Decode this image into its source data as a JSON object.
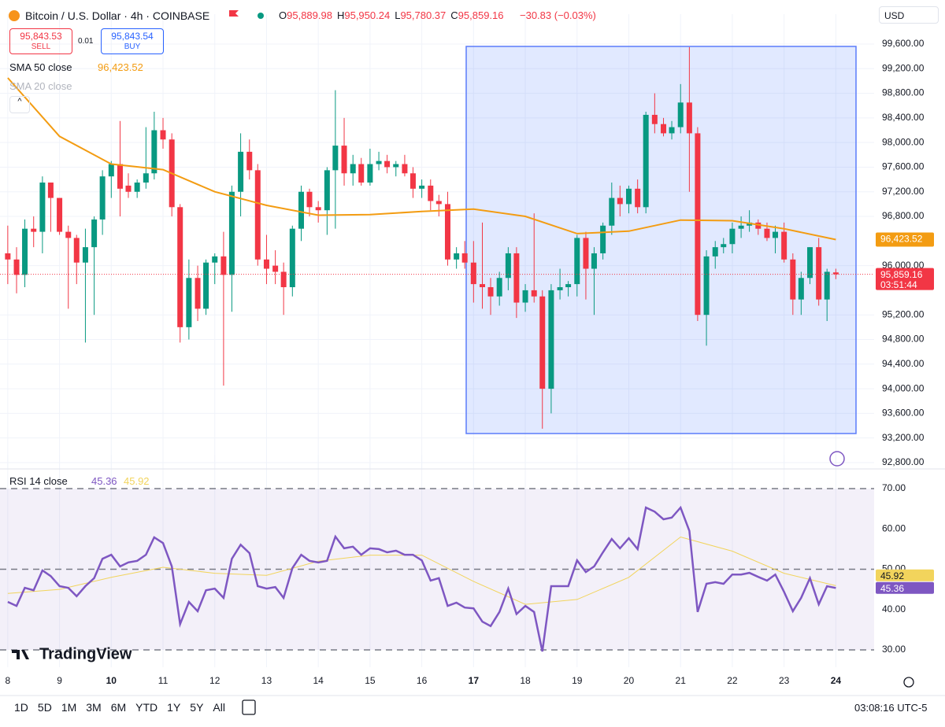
{
  "header": {
    "sell": {
      "price": "95,843.53",
      "label": "SELL"
    },
    "spread": "0.01",
    "buy": {
      "price": "95,843.54",
      "label": "BUY"
    },
    "currency": "USD"
  },
  "chart_data": [
    {
      "type": "candlestick",
      "title": "Bitcoin / U.S. Dollar · 4h · COINBASE",
      "ohlc_letters": [
        "O",
        "H",
        "L",
        "C"
      ],
      "ohlc_labels": [
        "95,889.98",
        "95,950.24",
        "95,780.37",
        "95,859.16"
      ],
      "change_label": "−30.83 (−0.03%)",
      "last_price_label": "95,859.16",
      "countdown": "03:51:44",
      "up_color": "#089981",
      "down_color": "#f23645",
      "x": [
        8,
        8.17,
        8.33,
        8.5,
        8.67,
        8.83,
        9,
        9.17,
        9.33,
        9.5,
        9.67,
        9.83,
        10,
        10.17,
        10.33,
        10.5,
        10.67,
        10.83,
        11,
        11.17,
        11.33,
        11.5,
        11.67,
        11.83,
        12,
        12.17,
        12.33,
        12.5,
        12.67,
        12.83,
        13,
        13.17,
        13.33,
        13.5,
        13.67,
        13.83,
        14,
        14.17,
        14.33,
        14.5,
        14.67,
        14.83,
        15,
        15.17,
        15.33,
        15.5,
        15.67,
        15.83,
        16,
        16.17,
        16.33,
        16.5,
        16.67,
        16.83,
        17,
        17.17,
        17.33,
        17.5,
        17.67,
        17.83,
        18,
        18.17,
        18.33,
        18.5,
        18.67,
        18.83,
        19,
        19.17,
        19.33,
        19.5,
        19.67,
        19.83,
        20,
        20.17,
        20.33,
        20.5,
        20.67,
        20.83,
        21,
        21.17,
        21.33,
        21.5,
        21.67,
        21.83,
        22,
        22.17,
        22.33,
        22.5,
        22.67,
        22.83,
        23,
        23.17,
        23.33,
        23.5,
        23.67,
        23.83,
        24
      ],
      "open": [
        96200,
        96100,
        95850,
        96600,
        96550,
        97350,
        97100,
        96550,
        96450,
        96050,
        96300,
        96750,
        97450,
        97650,
        97300,
        97200,
        97350,
        97500,
        98200,
        98050,
        96950,
        95000,
        95800,
        95300,
        96050,
        96150,
        95850,
        97200,
        97850,
        97550,
        96100,
        96000,
        95900,
        95650,
        96600,
        97200,
        96950,
        96900,
        97550,
        97950,
        97500,
        97650,
        97350,
        97650,
        97700,
        97600,
        97650,
        97500,
        97250,
        97300,
        97050,
        97000,
        96100,
        96200,
        96050,
        95700,
        95650,
        95500,
        95800,
        96200,
        95400,
        95600,
        95500,
        94000,
        95600,
        95650,
        95700,
        96450,
        95950,
        96200,
        96650,
        97100,
        97000,
        97250,
        96950,
        98450,
        98300,
        98150,
        98250,
        98650,
        98150,
        95200,
        96150,
        96300,
        96350,
        96600,
        96650,
        96700,
        96600,
        96450,
        96550,
        96100,
        95450,
        95800,
        96300,
        95450,
        95889.98
      ],
      "high": [
        96650,
        96300,
        96750,
        96800,
        97450,
        97350,
        97100,
        96650,
        96500,
        96600,
        96800,
        97550,
        97700,
        98350,
        97500,
        97400,
        98250,
        98500,
        98400,
        98150,
        97000,
        96100,
        96000,
        96100,
        96200,
        96550,
        97300,
        98150,
        98050,
        97650,
        96500,
        96250,
        96050,
        96650,
        97300,
        97250,
        97050,
        97600,
        98850,
        98400,
        97800,
        97750,
        97900,
        97850,
        97800,
        97700,
        97800,
        97600,
        97400,
        97400,
        97150,
        97200,
        96300,
        96400,
        96400,
        96700,
        95800,
        95900,
        96300,
        96300,
        95700,
        96850,
        95600,
        95700,
        95950,
        95750,
        96500,
        96550,
        96300,
        96700,
        97350,
        97300,
        97300,
        97400,
        98500,
        98800,
        98400,
        98350,
        98950,
        99550,
        98250,
        96250,
        96400,
        96450,
        96700,
        96800,
        96900,
        96750,
        96700,
        96650,
        96700,
        96200,
        95900,
        96300,
        96450,
        95950,
        95950.24
      ],
      "low": [
        95700,
        95550,
        95650,
        96300,
        96200,
        96550,
        96500,
        95300,
        95700,
        94750,
        95200,
        96500,
        97100,
        96800,
        97100,
        97100,
        97250,
        97400,
        97900,
        96800,
        94750,
        94800,
        95100,
        95200,
        95700,
        94050,
        95250,
        96800,
        97400,
        96000,
        95700,
        95700,
        95200,
        95500,
        96400,
        96800,
        96700,
        96500,
        96600,
        97300,
        97300,
        97300,
        97300,
        97550,
        97500,
        97450,
        97450,
        97100,
        97100,
        96900,
        96800,
        96000,
        95950,
        95950,
        95400,
        95300,
        95200,
        95350,
        95600,
        95150,
        95250,
        95400,
        93350,
        93600,
        95450,
        95500,
        95500,
        95450,
        95200,
        96100,
        96500,
        96800,
        96850,
        96850,
        96850,
        98150,
        98100,
        98050,
        98150,
        97200,
        95100,
        94700,
        95950,
        96200,
        96200,
        96450,
        96550,
        96500,
        96400,
        96200,
        96050,
        95200,
        95200,
        95700,
        95350,
        95100,
        95780.37
      ],
      "close": [
        96100,
        95850,
        96600,
        96550,
        97350,
        97100,
        96550,
        96450,
        96050,
        96300,
        96750,
        97450,
        97650,
        97250,
        97200,
        97350,
        97500,
        98200,
        98050,
        96950,
        95000,
        95800,
        95300,
        96050,
        96150,
        95850,
        97200,
        97850,
        97550,
        96100,
        95950,
        95900,
        95650,
        96600,
        97200,
        96950,
        96900,
        97550,
        97950,
        97500,
        97650,
        97350,
        97650,
        97700,
        97600,
        97650,
        97500,
        97250,
        97300,
        97050,
        97000,
        96100,
        96200,
        96050,
        95700,
        95650,
        95500,
        95800,
        96200,
        95400,
        95600,
        95500,
        94000,
        95600,
        95650,
        95700,
        96450,
        95950,
        96200,
        96650,
        97100,
        97000,
        97250,
        96950,
        98450,
        98300,
        98150,
        98250,
        98650,
        98150,
        95200,
        96150,
        96300,
        96350,
        96600,
        96650,
        96700,
        96600,
        96450,
        96550,
        96100,
        95450,
        95800,
        96300,
        95450,
        95900,
        95859.16
      ],
      "overlays": [
        {
          "name": "SMA 50 close",
          "color": "#f39c12",
          "visible": true,
          "x": [
            8,
            9,
            10,
            11,
            12,
            13,
            14,
            15,
            16,
            17,
            18,
            19,
            20,
            21,
            22,
            23,
            24
          ],
          "values": [
            99050,
            98100,
            97650,
            97560,
            97200,
            96980,
            96820,
            96830,
            96880,
            96920,
            96800,
            96520,
            96560,
            96740,
            96730,
            96600,
            96423.52
          ],
          "value_label": "96,423.52"
        },
        {
          "name": "SMA 20 close",
          "visible": false
        }
      ],
      "xlim": [
        7.85,
        24.74
      ],
      "ylim": [
        92710,
        99830
      ],
      "yticks": [
        {
          "value": 99600,
          "label": "99,600.00"
        },
        {
          "value": 99200,
          "label": "99,200.00"
        },
        {
          "value": 98800,
          "label": "98,800.00"
        },
        {
          "value": 98400,
          "label": "98,400.00"
        },
        {
          "value": 98000,
          "label": "98,000.00"
        },
        {
          "value": 97600,
          "label": "97,600.00"
        },
        {
          "value": 97200,
          "label": "97,200.00"
        },
        {
          "value": 96800,
          "label": "96,800.00"
        },
        {
          "value": 96000,
          "label": "96,000.00"
        },
        {
          "value": 95200,
          "label": "95,200.00"
        },
        {
          "value": 94800,
          "label": "94,800.00"
        },
        {
          "value": 94400,
          "label": "94,400.00"
        },
        {
          "value": 94000,
          "label": "94,000.00"
        },
        {
          "value": 93600,
          "label": "93,600.00"
        },
        {
          "value": 93200,
          "label": "93,200.00"
        },
        {
          "value": 92800,
          "label": "92,800.00"
        }
      ],
      "grid": true
    },
    {
      "type": "line",
      "title": "RSI 14 close",
      "x": [
        8,
        8.17,
        8.33,
        8.5,
        8.67,
        8.83,
        9,
        9.17,
        9.33,
        9.5,
        9.67,
        9.83,
        10,
        10.17,
        10.33,
        10.5,
        10.67,
        10.83,
        11,
        11.17,
        11.33,
        11.5,
        11.67,
        11.83,
        12,
        12.17,
        12.33,
        12.5,
        12.67,
        12.83,
        13,
        13.17,
        13.33,
        13.5,
        13.67,
        13.83,
        14,
        14.17,
        14.33,
        14.5,
        14.67,
        14.83,
        15,
        15.17,
        15.33,
        15.5,
        15.67,
        15.83,
        16,
        16.17,
        16.33,
        16.5,
        16.67,
        16.83,
        17,
        17.17,
        17.33,
        17.5,
        17.67,
        17.83,
        18,
        18.17,
        18.33,
        18.5,
        18.67,
        18.83,
        19,
        19.17,
        19.33,
        19.5,
        19.67,
        19.83,
        20,
        20.17,
        20.33,
        20.5,
        20.67,
        20.83,
        21,
        21.17,
        21.33,
        21.5,
        21.67,
        21.83,
        22,
        22.17,
        22.33,
        22.5,
        22.67,
        22.83,
        23,
        23.17,
        23.33,
        23.5,
        23.67,
        23.83,
        24
      ],
      "series": [
        {
          "color": "#7e57c2",
          "values": [
            41.9,
            40.9,
            45.4,
            44.8,
            49.7,
            48.3,
            45.8,
            45.4,
            43.3,
            45.8,
            47.8,
            52.6,
            53.6,
            50.7,
            51.7,
            52.1,
            53.6,
            57.9,
            56.5,
            50.7,
            36.4,
            41.9,
            39.6,
            44.8,
            45.2,
            42.9,
            52.6,
            56.1,
            54,
            45.8,
            45.2,
            45.6,
            42.9,
            50.3,
            53.6,
            52.1,
            51.7,
            52.1,
            58.1,
            55.2,
            55.6,
            53.6,
            55.2,
            55,
            54.2,
            54.6,
            53.6,
            53.6,
            52.2,
            47.2,
            47.8,
            40.9,
            41.7,
            40.5,
            40.3,
            37,
            35.9,
            39.4,
            45.2,
            38.9,
            40.9,
            39.4,
            29.6,
            45.8,
            45.8,
            45.8,
            52.2,
            49.3,
            50.7,
            54.2,
            57.5,
            55.2,
            57.7,
            55,
            65.3,
            64.3,
            62.4,
            62.8,
            65.3,
            59.5,
            39.4,
            46.4,
            46.8,
            46.4,
            48.7,
            48.7,
            49.1,
            48.1,
            47.2,
            48.7,
            44.4,
            39.6,
            42.9,
            47.8,
            41.3,
            45.8,
            45.36
          ],
          "value_label": "45.36"
        },
        {
          "color": "#f2d45c",
          "x": [
            8,
            9,
            10,
            11,
            12,
            13,
            14,
            15,
            16,
            17,
            18,
            19,
            20,
            21,
            22,
            23,
            24
          ],
          "values": [
            44,
            45,
            48,
            50.5,
            49,
            48.5,
            52,
            53.5,
            53.5,
            47,
            41.3,
            42.5,
            48,
            58,
            54.5,
            49,
            45.92
          ],
          "value_label": "45.92"
        }
      ],
      "levels": [
        30,
        50,
        70
      ],
      "xlim": [
        7.85,
        24.74
      ],
      "ylim": [
        25.7,
        74.5
      ],
      "yticks": [
        {
          "value": 70,
          "label": "70.00"
        },
        {
          "value": 60,
          "label": "60.00"
        },
        {
          "value": 50,
          "label": "50.00"
        },
        {
          "value": 40,
          "label": "40.00"
        },
        {
          "value": 30,
          "label": "30.00"
        }
      ],
      "xticks": [
        8,
        9,
        10,
        11,
        12,
        13,
        14,
        15,
        16,
        17,
        18,
        19,
        20,
        21,
        22,
        23,
        24
      ]
    }
  ],
  "logo": "TradingView",
  "toolbar": {
    "ranges": [
      "1D",
      "5D",
      "1M",
      "3M",
      "6M",
      "YTD",
      "1Y",
      "5Y",
      "All"
    ],
    "clock": "03:08:16 UTC-5"
  }
}
